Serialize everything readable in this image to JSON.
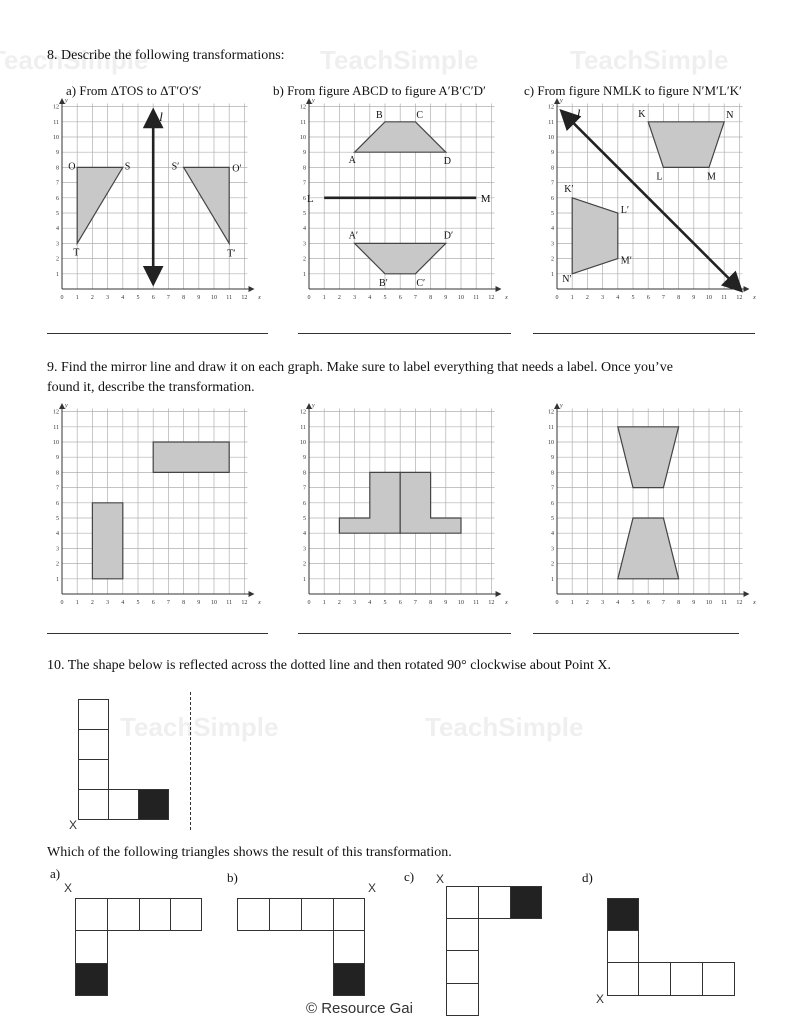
{
  "watermark": "TeachSimple",
  "q8": {
    "title": "8.  Describe the following transformations:",
    "parts": [
      {
        "label": "a) From ΔTOS to ΔT′O′S′"
      },
      {
        "label": "b) From figure ABCD to figure A′B′C′D′"
      },
      {
        "label": "c) From figure NMLK to figure N′M′L′K′"
      }
    ]
  },
  "q9": {
    "title_line1": "9.  Find the mirror line and draw it on each graph. Make sure to label everything that needs a label. Once you’ve",
    "title_line2": "found it, describe the transformation."
  },
  "q10": {
    "title": "10. The shape below is reflected across the dotted line and then rotated 90° clockwise about Point X.",
    "point_label": "X",
    "question": "Which of the following triangles shows the result of this transformation.",
    "options": [
      {
        "label": "a)"
      },
      {
        "label": "b)"
      },
      {
        "label": "c)"
      },
      {
        "label": "d)"
      }
    ]
  },
  "axis": {
    "x_label": "x",
    "y_label": "y",
    "ticks": [
      0,
      1,
      2,
      3,
      4,
      5,
      6,
      7,
      8,
      9,
      10,
      11,
      12
    ]
  },
  "graphs": [
    {
      "shapes": [
        [
          [
            1,
            3
          ],
          [
            1,
            8
          ],
          [
            4,
            8
          ]
        ],
        [
          [
            11,
            3
          ],
          [
            11,
            8
          ],
          [
            8,
            8
          ]
        ]
      ],
      "lines": [
        {
          "from": [
            6,
            0.5
          ],
          "to": [
            6,
            11.6
          ],
          "arrows": true,
          "label": "l",
          "label_at": [
            6.4,
            11.3
          ]
        }
      ],
      "labels": [
        [
          "T",
          1,
          3,
          -4,
          12
        ],
        [
          "O",
          1,
          8,
          -9,
          2
        ],
        [
          "S",
          4,
          8,
          2,
          2
        ],
        [
          "S′",
          8,
          8,
          -12,
          2
        ],
        [
          "O′",
          11,
          8,
          3,
          4
        ],
        [
          "T′",
          11,
          3,
          -2,
          13
        ]
      ]
    },
    {
      "shapes": [
        [
          [
            3,
            9
          ],
          [
            5,
            11
          ],
          [
            7,
            11
          ],
          [
            9,
            9
          ]
        ],
        [
          [
            3,
            3
          ],
          [
            5,
            1
          ],
          [
            7,
            1
          ],
          [
            9,
            3
          ]
        ]
      ],
      "lines": [
        {
          "from": [
            1,
            6
          ],
          "to": [
            11,
            6
          ],
          "arrows": false,
          "label": "L",
          "label_at": [
            0.3,
            6
          ],
          "label2": "M",
          "label2_at": [
            11.3,
            6
          ]
        }
      ],
      "labels": [
        [
          "A",
          3,
          9,
          -6,
          11
        ],
        [
          "B",
          5,
          11,
          -9,
          -4
        ],
        [
          "C",
          7,
          11,
          1,
          -4
        ],
        [
          "D",
          9,
          9,
          -2,
          12
        ],
        [
          "A′",
          3,
          3,
          -6,
          -5
        ],
        [
          "B′",
          5,
          1,
          -6,
          12
        ],
        [
          "C′",
          7,
          1,
          1,
          12
        ],
        [
          "D′",
          9,
          3,
          -2,
          -5
        ]
      ]
    },
    {
      "shapes": [
        [
          [
            6,
            11
          ],
          [
            11,
            11
          ],
          [
            10,
            8
          ],
          [
            7,
            8
          ]
        ],
        [
          [
            1,
            6
          ],
          [
            4,
            5
          ],
          [
            4,
            2
          ],
          [
            1,
            1
          ]
        ]
      ],
      "lines": [
        {
          "from": [
            0.4,
            11.6
          ],
          "to": [
            12,
            0
          ],
          "arrows": true,
          "label": "l",
          "label_at": [
            1.3,
            11.5
          ]
        }
      ],
      "labels": [
        [
          "K",
          6,
          11,
          -10,
          -5
        ],
        [
          "N",
          11,
          11,
          2,
          -4
        ],
        [
          "M",
          10,
          8,
          -2,
          12
        ],
        [
          "L",
          7,
          8,
          -7,
          12
        ],
        [
          "K′",
          1,
          6,
          -8,
          -6
        ],
        [
          "L′",
          4,
          5,
          3,
          0
        ],
        [
          "M′",
          4,
          2,
          3,
          5
        ],
        [
          "N′",
          1,
          1,
          -10,
          8
        ]
      ]
    },
    {
      "shapes": [
        [
          [
            2,
            1
          ],
          [
            4,
            1
          ],
          [
            4,
            6
          ],
          [
            2,
            6
          ]
        ],
        [
          [
            6,
            8
          ],
          [
            11,
            8
          ],
          [
            11,
            10
          ],
          [
            6,
            10
          ]
        ]
      ],
      "lines": [],
      "labels": []
    },
    {
      "shapes": [
        [
          [
            2,
            4
          ],
          [
            6,
            4
          ],
          [
            6,
            8
          ],
          [
            4,
            8
          ],
          [
            4,
            5
          ],
          [
            2,
            5
          ]
        ],
        [
          [
            6,
            4
          ],
          [
            10,
            4
          ],
          [
            10,
            5
          ],
          [
            8,
            5
          ],
          [
            8,
            8
          ],
          [
            6,
            8
          ]
        ]
      ],
      "lines": [],
      "labels": []
    },
    {
      "shapes": [
        [
          [
            4,
            11
          ],
          [
            8,
            11
          ],
          [
            7,
            7
          ],
          [
            5,
            7
          ]
        ],
        [
          [
            5,
            5
          ],
          [
            7,
            5
          ],
          [
            8,
            1
          ],
          [
            4,
            1
          ]
        ]
      ],
      "lines": [],
      "labels": []
    }
  ],
  "colors": {
    "shape_fill": "#c8c8c8",
    "grid": "#b0b0b0",
    "black_square": "#222222"
  },
  "footer": "© Resource Gai"
}
